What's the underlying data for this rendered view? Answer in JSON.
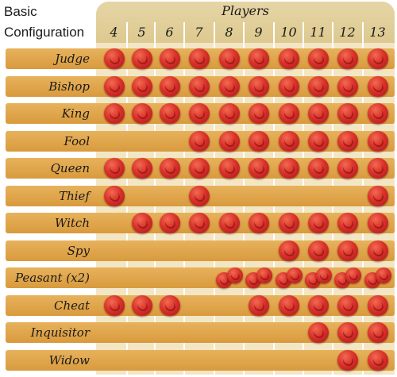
{
  "title_lines": [
    "Basic",
    "Configuration"
  ],
  "players_label": "Players",
  "player_counts": [
    "4",
    "5",
    "6",
    "7",
    "8",
    "9",
    "10",
    "11",
    "12",
    "13"
  ],
  "token_color": "#d9322a",
  "band_color": "#dea448",
  "rows": [
    {
      "label": "Judge",
      "tokens": [
        1,
        1,
        1,
        1,
        1,
        1,
        1,
        1,
        1,
        1
      ]
    },
    {
      "label": "Bishop",
      "tokens": [
        1,
        1,
        1,
        1,
        1,
        1,
        1,
        1,
        1,
        1
      ]
    },
    {
      "label": "King",
      "tokens": [
        1,
        1,
        1,
        1,
        1,
        1,
        1,
        1,
        1,
        1
      ]
    },
    {
      "label": "Fool",
      "tokens": [
        0,
        0,
        0,
        1,
        1,
        1,
        1,
        1,
        1,
        1
      ]
    },
    {
      "label": "Queen",
      "tokens": [
        1,
        1,
        1,
        1,
        1,
        1,
        1,
        1,
        1,
        1
      ]
    },
    {
      "label": "Thief",
      "tokens": [
        1,
        0,
        0,
        1,
        0,
        0,
        0,
        0,
        0,
        1
      ]
    },
    {
      "label": "Witch",
      "tokens": [
        0,
        1,
        1,
        1,
        1,
        1,
        1,
        1,
        1,
        1
      ]
    },
    {
      "label": "Spy",
      "tokens": [
        0,
        0,
        0,
        0,
        0,
        0,
        1,
        1,
        1,
        1
      ]
    },
    {
      "label": "Peasant (x2)",
      "tokens": [
        0,
        0,
        0,
        0,
        2,
        2,
        2,
        2,
        2,
        2
      ]
    },
    {
      "label": "Cheat",
      "tokens": [
        1,
        1,
        1,
        0,
        0,
        1,
        1,
        1,
        1,
        1
      ]
    },
    {
      "label": "Inquisitor",
      "tokens": [
        0,
        0,
        0,
        0,
        0,
        0,
        0,
        1,
        1,
        1
      ]
    },
    {
      "label": "Widow",
      "tokens": [
        0,
        0,
        0,
        0,
        0,
        0,
        0,
        0,
        1,
        1
      ]
    }
  ]
}
